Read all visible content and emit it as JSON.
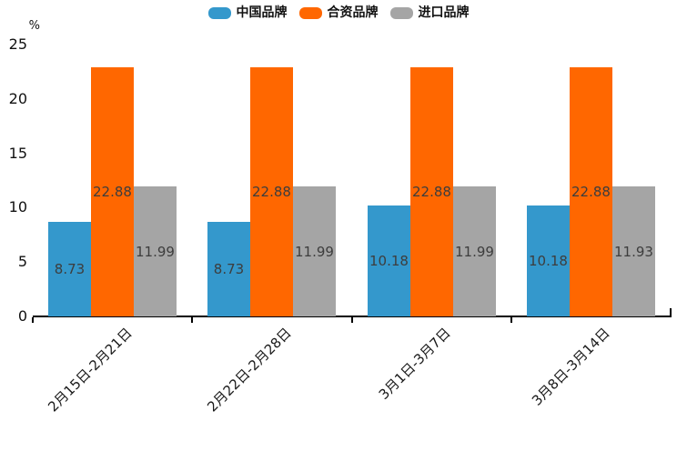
{
  "chart_data": {
    "type": "bar",
    "title": "",
    "xlabel": "",
    "ylabel": "%",
    "categories": [
      "2月15日-2月21日",
      "2月22日-2月28日",
      "3月1日-3月7日",
      "3月8日-3月14日"
    ],
    "series": [
      {
        "name": "中国品牌",
        "color": "#3498CC",
        "values": [
          8.73,
          8.73,
          10.18,
          10.18
        ]
      },
      {
        "name": "合资品牌",
        "color": "#FF6700",
        "values": [
          22.88,
          22.88,
          22.88,
          22.88
        ]
      },
      {
        "name": "进口品牌",
        "color": "#A5A5A5",
        "values": [
          11.99,
          11.99,
          11.99,
          11.93
        ]
      }
    ],
    "ylim": [
      0,
      25
    ],
    "yticks": [
      0,
      5,
      10,
      15,
      20,
      25
    ],
    "grid": false,
    "legend_position": "top-center",
    "value_labels": true,
    "value_label_color": "#3d3d3d",
    "axis_color": "#000000",
    "background_color": "#ffffff"
  }
}
